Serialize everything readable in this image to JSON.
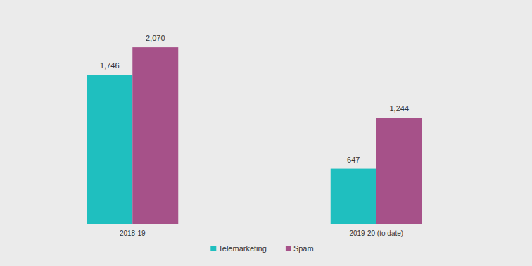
{
  "chart_data": {
    "type": "bar",
    "categories": [
      "2018-19",
      "2019-20 (to date)"
    ],
    "series": [
      {
        "name": "Telemarketing",
        "color": "#1fbfbf",
        "values": [
          1746,
          647
        ],
        "value_labels": [
          "1,746",
          "647"
        ]
      },
      {
        "name": "Spam",
        "color": "#a65189",
        "values": [
          2070,
          1244
        ],
        "value_labels": [
          "2,070",
          "1,244"
        ]
      }
    ],
    "ylim": [
      0,
      2500
    ],
    "data_labels": true,
    "tick_labels": "x",
    "legend": "bottom",
    "grid": false
  }
}
